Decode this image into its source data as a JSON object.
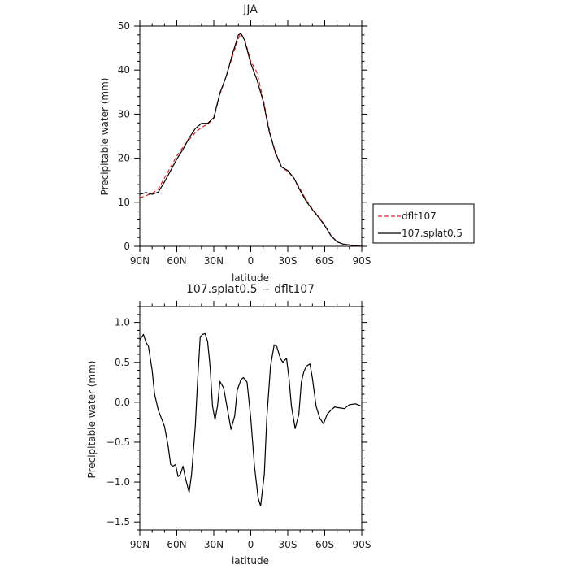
{
  "chart_data": [
    {
      "type": "line",
      "title": "JJA",
      "xlabel": "latitude",
      "ylabel": "Precipitable water (mm)",
      "xlim": [
        -90,
        90
      ],
      "ylim": [
        0,
        50
      ],
      "x_ticks": [
        -90,
        -60,
        -30,
        0,
        30,
        60,
        90
      ],
      "x_tick_labels": [
        "90N",
        "60N",
        "30N",
        "0",
        "30S",
        "60S",
        "90S"
      ],
      "y_ticks": [
        0,
        10,
        20,
        30,
        40,
        50
      ],
      "y_tick_labels": [
        "0",
        "10",
        "20",
        "30",
        "40",
        "50"
      ],
      "x_minor_step": 10,
      "y_minor_step": 2,
      "grid": false,
      "legend": "right",
      "series": [
        {
          "name": "dflt107",
          "color": "#e02020",
          "dash": "dashed",
          "x": [
            -90,
            -85,
            -80,
            -75,
            -70,
            -65,
            -60,
            -55,
            -50,
            -45,
            -40,
            -35,
            -30,
            -25,
            -20,
            -15,
            -10,
            -8,
            -5,
            0,
            5,
            10,
            15,
            20,
            25,
            30,
            35,
            40,
            45,
            50,
            55,
            60,
            65,
            70,
            75,
            80,
            85,
            90
          ],
          "values": [
            11.0,
            11.5,
            12.0,
            13.0,
            15.5,
            18.0,
            20.5,
            22.5,
            24.2,
            25.8,
            27.0,
            27.7,
            29.0,
            34.5,
            38.5,
            43.0,
            47.2,
            48.3,
            47.0,
            42.0,
            39.5,
            33.5,
            26.5,
            21.0,
            18.0,
            17.0,
            15.5,
            13.0,
            10.5,
            8.5,
            6.8,
            4.8,
            2.5,
            1.0,
            0.5,
            0.3,
            0.1,
            0.0
          ]
        },
        {
          "name": "107.splat0.5",
          "color": "#000000",
          "dash": "solid",
          "x": [
            -90,
            -85,
            -80,
            -75,
            -70,
            -65,
            -60,
            -55,
            -50,
            -45,
            -40,
            -35,
            -30,
            -25,
            -20,
            -15,
            -10,
            -8,
            -5,
            0,
            5,
            10,
            15,
            20,
            25,
            30,
            35,
            40,
            45,
            50,
            55,
            60,
            65,
            70,
            75,
            80,
            85,
            90
          ],
          "values": [
            11.8,
            12.2,
            11.8,
            12.3,
            14.6,
            17.2,
            19.8,
            22.0,
            24.6,
            26.7,
            27.9,
            27.9,
            29.2,
            34.8,
            38.5,
            43.5,
            48.0,
            48.3,
            46.8,
            41.5,
            37.8,
            33.0,
            26.0,
            21.3,
            18.0,
            17.2,
            15.5,
            12.7,
            10.2,
            8.3,
            6.6,
            4.7,
            2.4,
            1.0,
            0.5,
            0.3,
            0.1,
            0.0
          ]
        }
      ]
    },
    {
      "type": "line",
      "title": "107.splat0.5 − dflt107",
      "xlabel": "latitude",
      "ylabel": "Precipitable water (mm)",
      "xlim": [
        -90,
        90
      ],
      "ylim": [
        -1.6,
        1.2
      ],
      "x_ticks": [
        -90,
        -60,
        -30,
        0,
        30,
        60,
        90
      ],
      "x_tick_labels": [
        "90N",
        "60N",
        "30N",
        "0",
        "30S",
        "60S",
        "90S"
      ],
      "y_ticks": [
        -1.5,
        -1.0,
        -0.5,
        0.0,
        0.5,
        1.0
      ],
      "y_tick_labels": [
        "−1.5",
        "−1.0",
        "−0.5",
        "0.0",
        "0.5",
        "1.0"
      ],
      "x_minor_step": 10,
      "y_minor_step": 0.1,
      "grid": false,
      "series": [
        {
          "color": "#000000",
          "dash": "solid",
          "x": [
            -90,
            -87,
            -85,
            -83,
            -80,
            -78,
            -75,
            -72,
            -70,
            -67,
            -65,
            -63,
            -61,
            -59,
            -57,
            -55,
            -53,
            -50,
            -48,
            -45,
            -43,
            -41,
            -39,
            -37,
            -35,
            -33,
            -31,
            -29,
            -27,
            -25,
            -22,
            -19,
            -16,
            -13,
            -11,
            -8,
            -6,
            -3,
            0,
            3,
            6,
            8,
            11,
            13,
            16,
            19,
            21,
            24,
            26,
            29,
            31,
            33,
            36,
            39,
            41,
            43,
            45,
            48,
            50,
            53,
            56,
            59,
            62,
            65,
            68,
            72,
            76,
            80,
            85,
            90
          ],
          "values": [
            0.78,
            0.85,
            0.75,
            0.7,
            0.4,
            0.1,
            -0.1,
            -0.22,
            -0.3,
            -0.55,
            -0.78,
            -0.8,
            -0.78,
            -0.93,
            -0.9,
            -0.8,
            -0.95,
            -1.13,
            -0.9,
            -0.3,
            0.3,
            0.82,
            0.85,
            0.86,
            0.76,
            0.45,
            -0.05,
            -0.22,
            -0.05,
            0.26,
            0.18,
            -0.08,
            -0.34,
            -0.17,
            0.15,
            0.28,
            0.31,
            0.25,
            -0.2,
            -0.8,
            -1.2,
            -1.3,
            -0.9,
            -0.2,
            0.45,
            0.72,
            0.7,
            0.55,
            0.5,
            0.55,
            0.3,
            -0.05,
            -0.33,
            -0.15,
            0.25,
            0.38,
            0.45,
            0.48,
            0.3,
            -0.05,
            -0.2,
            -0.27,
            -0.15,
            -0.1,
            -0.06,
            -0.07,
            -0.08,
            -0.03,
            -0.02,
            -0.05
          ]
        }
      ]
    }
  ]
}
